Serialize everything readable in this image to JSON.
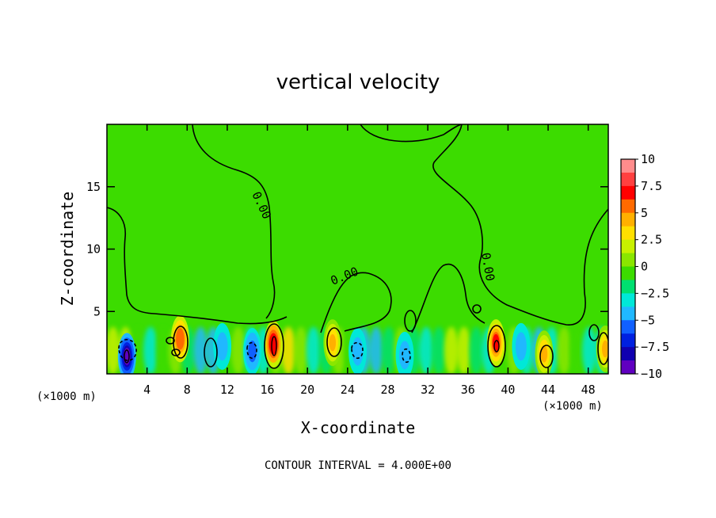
{
  "chart_data": {
    "type": "heatmap",
    "title": "vertical velocity",
    "xlabel": "X-coordinate",
    "ylabel": "Z-coordinate",
    "xunit_left": "(×1000 m)",
    "xunit_right": "(×1000 m)",
    "footer": "CONTOUR INTERVAL = 4.000E+00",
    "xlim": [
      0,
      50
    ],
    "ylim": [
      0,
      20
    ],
    "xticks": [
      4,
      8,
      12,
      16,
      20,
      24,
      28,
      32,
      36,
      40,
      44,
      48
    ],
    "yticks": [
      5,
      10,
      15
    ],
    "colorbar": {
      "ticks": [
        "10",
        "7.5",
        "5",
        "2.5",
        "0",
        "−2.5",
        "−5",
        "−7.5",
        "−10"
      ],
      "values": [
        10,
        7.5,
        5,
        2.5,
        0,
        -2.5,
        -5,
        -7.5,
        -10
      ],
      "colors": [
        "#ff8c8c",
        "#ff4040",
        "#ff0000",
        "#ff6a00",
        "#ffb000",
        "#ffe000",
        "#c8f000",
        "#8ae600",
        "#3cdc00",
        "#00e070",
        "#00e8d8",
        "#20b8ff",
        "#1060ff",
        "#0020e0",
        "#1000b0",
        "#6000c0"
      ]
    },
    "contour_labels": [
      "0.00",
      "0.00",
      "0.00"
    ],
    "features": [
      {
        "x": 2.0,
        "z": 1.4,
        "w": -8.5
      },
      {
        "x": 7.3,
        "z": 2.8,
        "w": 6.5
      },
      {
        "x": 16.6,
        "z": 2.4,
        "w": 8.0
      },
      {
        "x": 22.5,
        "z": 2.5,
        "w": 4.5
      },
      {
        "x": 38.8,
        "z": 2.5,
        "w": 7.0
      },
      {
        "x": 43.6,
        "z": 1.6,
        "w": 4.5
      },
      {
        "x": 49.7,
        "z": 2.0,
        "w": 4.5
      },
      {
        "x": 14.5,
        "z": 1.8,
        "w": -4.0
      },
      {
        "x": 25.0,
        "z": 1.8,
        "w": -3.5
      },
      {
        "x": 29.7,
        "z": 1.5,
        "w": -3.0
      },
      {
        "x": 11.5,
        "z": 2.2,
        "w": -3.0
      },
      {
        "x": 41.3,
        "z": 2.2,
        "w": -3.0
      }
    ]
  }
}
